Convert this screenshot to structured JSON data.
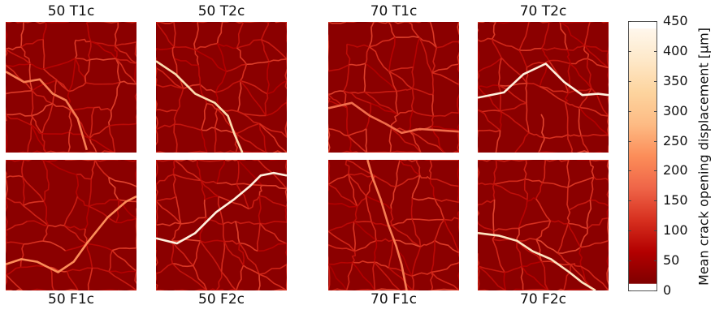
{
  "chart_data": {
    "type": "heatmap",
    "panels": [
      {
        "title": "50 T1c",
        "seed": 11,
        "major_crack": [
          [
            0.0,
            0.38
          ],
          [
            0.14,
            0.46
          ],
          [
            0.26,
            0.44
          ],
          [
            0.36,
            0.55
          ],
          [
            0.46,
            0.6
          ],
          [
            0.55,
            0.74
          ],
          [
            0.62,
            0.98
          ]
        ],
        "major_intensity": 0.45
      },
      {
        "title": "50 T2c",
        "seed": 23,
        "major_crack": [
          [
            0.0,
            0.3
          ],
          [
            0.15,
            0.4
          ],
          [
            0.3,
            0.55
          ],
          [
            0.45,
            0.62
          ],
          [
            0.55,
            0.72
          ],
          [
            0.6,
            0.86
          ],
          [
            0.66,
            1.0
          ]
        ],
        "major_intensity": 0.8
      },
      {
        "title": "70 T1c",
        "seed": 37,
        "major_crack": [
          [
            0.0,
            0.66
          ],
          [
            0.18,
            0.62
          ],
          [
            0.32,
            0.72
          ],
          [
            0.44,
            0.78
          ],
          [
            0.56,
            0.85
          ],
          [
            0.7,
            0.82
          ],
          [
            1.0,
            0.84
          ]
        ],
        "major_intensity": 0.4
      },
      {
        "title": "70 T2c",
        "seed": 41,
        "major_crack": [
          [
            0.0,
            0.58
          ],
          [
            0.2,
            0.54
          ],
          [
            0.35,
            0.4
          ],
          [
            0.52,
            0.32
          ],
          [
            0.66,
            0.46
          ],
          [
            0.8,
            0.56
          ],
          [
            0.92,
            0.55
          ],
          [
            1.0,
            0.56
          ]
        ],
        "major_intensity": 0.95
      },
      {
        "title": "50 F1c",
        "seed": 53,
        "major_crack": [
          [
            0.0,
            0.8
          ],
          [
            0.12,
            0.76
          ],
          [
            0.24,
            0.78
          ],
          [
            0.4,
            0.86
          ],
          [
            0.52,
            0.78
          ],
          [
            0.62,
            0.64
          ],
          [
            0.78,
            0.44
          ],
          [
            0.92,
            0.32
          ],
          [
            1.0,
            0.28
          ]
        ],
        "major_intensity": 0.5
      },
      {
        "title": "50 F2c",
        "seed": 67,
        "major_crack": [
          [
            0.0,
            0.6
          ],
          [
            0.16,
            0.64
          ],
          [
            0.3,
            0.56
          ],
          [
            0.46,
            0.4
          ],
          [
            0.6,
            0.3
          ],
          [
            0.72,
            0.2
          ],
          [
            0.8,
            0.12
          ],
          [
            0.9,
            0.1
          ],
          [
            1.0,
            0.12
          ]
        ],
        "major_intensity": 0.95
      },
      {
        "title": "70 F1c",
        "seed": 79,
        "major_crack": [
          [
            0.3,
            0.0
          ],
          [
            0.34,
            0.14
          ],
          [
            0.4,
            0.3
          ],
          [
            0.46,
            0.5
          ],
          [
            0.52,
            0.66
          ],
          [
            0.56,
            0.8
          ],
          [
            0.6,
            1.0
          ]
        ],
        "major_intensity": 0.45
      },
      {
        "title": "70 F2c",
        "seed": 83,
        "major_crack": [
          [
            0.0,
            0.56
          ],
          [
            0.16,
            0.58
          ],
          [
            0.3,
            0.62
          ],
          [
            0.42,
            0.7
          ],
          [
            0.56,
            0.76
          ],
          [
            0.7,
            0.86
          ],
          [
            0.8,
            0.94
          ],
          [
            0.9,
            1.0
          ]
        ],
        "major_intensity": 0.85
      }
    ],
    "colorbar": {
      "label": "Mean crack opening displacement [µm]",
      "min": 0,
      "max": 450,
      "ticks": [
        0,
        50,
        100,
        150,
        200,
        250,
        300,
        350,
        400,
        450
      ],
      "colors": [
        "#7f0000",
        "#b30000",
        "#d7301f",
        "#ef6548",
        "#fc8d59",
        "#fdbb84",
        "#fdd49e",
        "#fee8c8",
        "#fff7ec"
      ]
    }
  }
}
